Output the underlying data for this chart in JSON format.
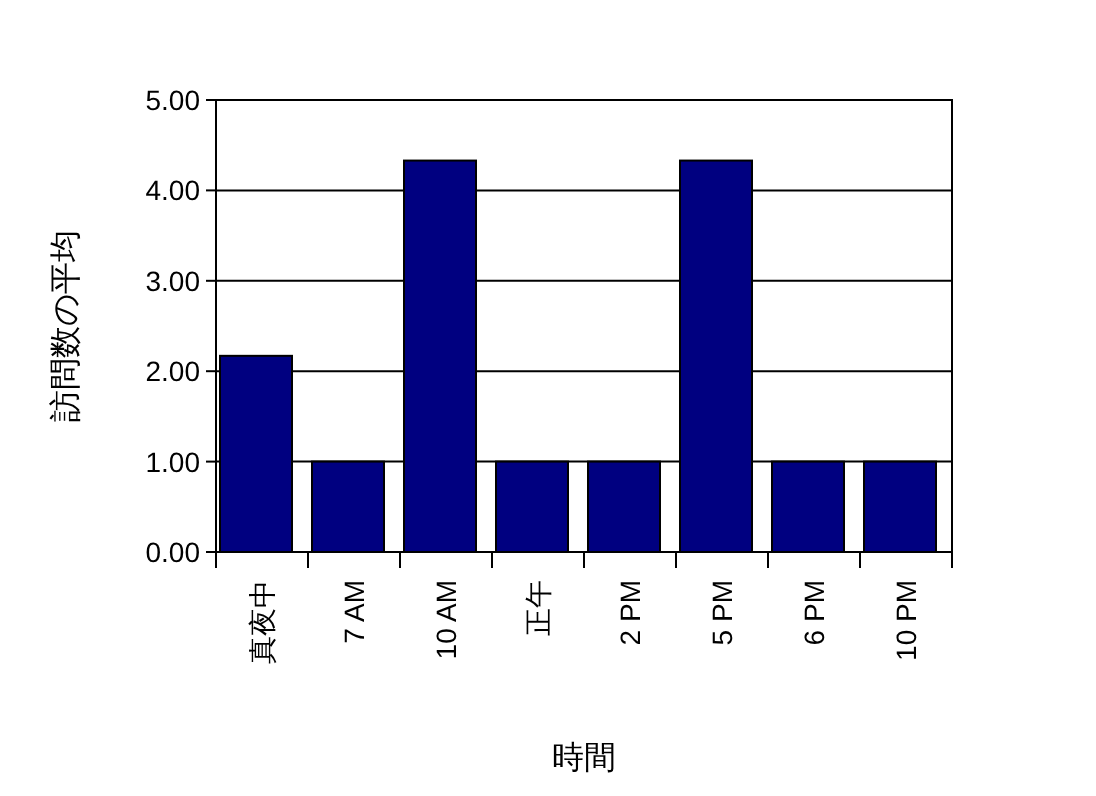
{
  "chart_data": {
    "type": "bar",
    "xlabel": "時間",
    "ylabel": "訪問数の平均",
    "categories": [
      "真夜中",
      "7 AM",
      "10 AM",
      "正午",
      "2 PM",
      "5 PM",
      "6 PM",
      "10 PM"
    ],
    "values": [
      2.17,
      1,
      4.33,
      1,
      1,
      4.33,
      1,
      1
    ],
    "color": "#000080",
    "ylim": [
      0,
      5
    ],
    "yticks": [
      {
        "value": 0,
        "label": "0.00"
      },
      {
        "value": 1,
        "label": "1.00"
      },
      {
        "value": 2,
        "label": "2.00"
      },
      {
        "value": 3,
        "label": "3.00"
      },
      {
        "value": 4,
        "label": "4.00"
      },
      {
        "value": 5,
        "label": "5.00"
      }
    ],
    "grid": "y"
  }
}
